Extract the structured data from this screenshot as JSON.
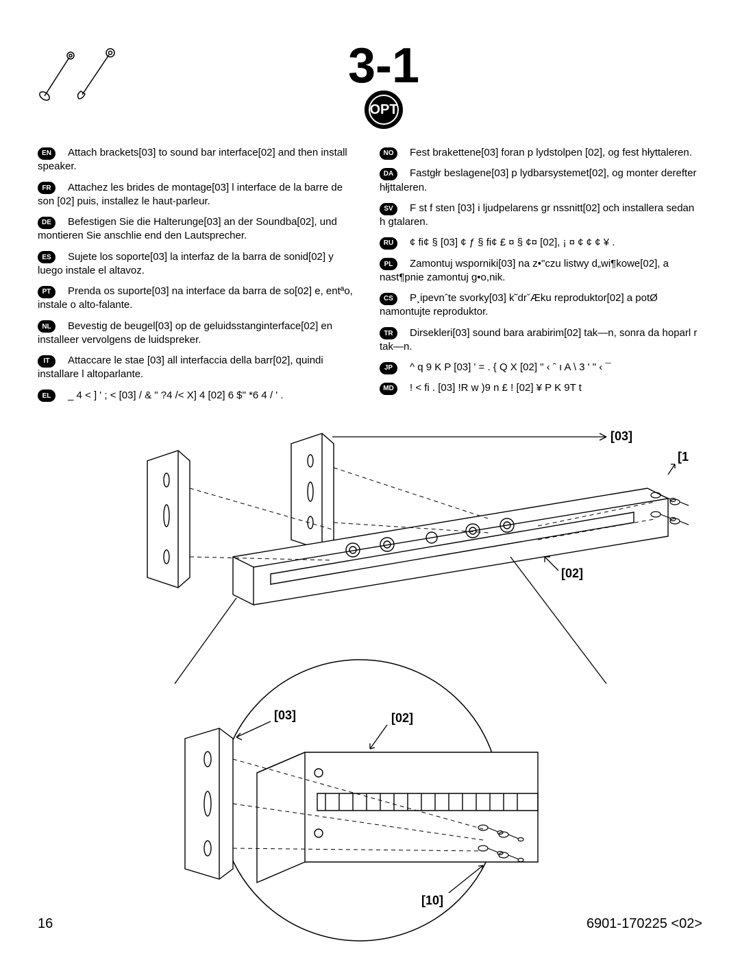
{
  "step": {
    "number": "3-1",
    "opt_label": "OPT"
  },
  "callouts": {
    "c02": "[02]",
    "c03": "[03]",
    "c10": "[10]"
  },
  "footer": {
    "page": "16",
    "doc_code": "6901-170225 <02>"
  },
  "languages": [
    {
      "code": "EN",
      "text": "Attach brackets[03] to sound bar interface[02] and then install speaker."
    },
    {
      "code": "FR",
      "text": "Attachez les brides de montage[03]  l interface de la barre de son [02] puis, installez le haut-parleur."
    },
    {
      "code": "DE",
      "text": "Befestigen Sie die Halterunge[03] an der Soundba[02], und montieren Sie anschlie end den Lautsprecher."
    },
    {
      "code": "ES",
      "text": "Sujete los soporte[03]  la interfaz de la barra de sonid[02] y luego instale el altavoz."
    },
    {
      "code": "PT",
      "text": "Prenda os suporte[03] na interface da barra de so[02] e, entªo, instale o alto-falante."
    },
    {
      "code": "NL",
      "text": "Bevestig de beugel[03] op de geluidsstanginterface[02] en installeer vervolgens de luidspreker."
    },
    {
      "code": "IT",
      "text": "Attaccare le stae [03] all interfaccia della barr[02], quindi installare l altoparlante."
    },
    {
      "code": "EL",
      "text": "_   4   < ]  ' ; <           [03]  / &  \" ?4 /< X]  4      [02] 6  $\"    *6   4    / ' ."
    },
    {
      "code": "NO",
      "text": "Fest brakettene[03] foran p  lydstolpen [02], og fest hłyttaleren."
    },
    {
      "code": "DA",
      "text": "Fastgłr beslagene[03] p  lydbarsystemet[02], og monter derefter hłjttaleren."
    },
    {
      "code": "SV",
      "text": "F st f sten [03] i ljudpelarens gr nssnitt[02] och installera sedan h gtalaren."
    },
    {
      "code": "RU",
      "text": "¢    fi¢ §         [03]    ¢ ƒ § fi¢          £            ¤  §    ¢¤         [02],     ¡   ¤ ¢  ¢        ¢ ¥ ."
    },
    {
      "code": "PL",
      "text": "Zamontuj wsporniki[03] na z•\"czu listwy d„wi¶kowe[02], a nast¶pnie zamontuj g•o,nik."
    },
    {
      "code": "CS",
      "text": "P¸ipevnˆte svorky[03] k˜drˇÆku reproduktor[02] a potØ namontujte reproduktor."
    },
    {
      "code": "TR",
      "text": "Dirsekleri[03] sound bara arabirim[02] tak—n, sonra da hoparl r tak—n."
    },
    {
      "code": "JP",
      "text": "^ q 9 K P  [03] ' = . { Q X        [02]   \"  ‹  ˆ ı  A \\       3   ' \"  ‹     ¯"
    },
    {
      "code": "MD",
      "text": "!    < fi .  [03] !R  w )9  n  £ !   [02]  ¥   P K 9T t"
    }
  ],
  "colors": {
    "black": "#000000",
    "white": "#ffffff",
    "gray_line": "#6b6b6b"
  }
}
